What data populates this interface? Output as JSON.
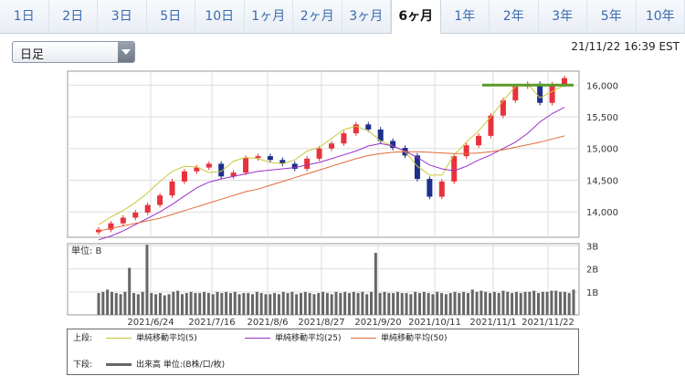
{
  "tabs": [
    {
      "label": "1日"
    },
    {
      "label": "2日"
    },
    {
      "label": "3日"
    },
    {
      "label": "5日"
    },
    {
      "label": "10日"
    },
    {
      "label": "1ヶ月"
    },
    {
      "label": "2ヶ月"
    },
    {
      "label": "3ヶ月"
    },
    {
      "label": "6ヶ月",
      "active": true
    },
    {
      "label": "1年"
    },
    {
      "label": "2年"
    },
    {
      "label": "3年"
    },
    {
      "label": "5年"
    },
    {
      "label": "10年"
    }
  ],
  "selector": {
    "value": "日足"
  },
  "timestamp": "21/11/22 16:39 EST",
  "legend": {
    "upper_label": "上段:",
    "lower_label": "下段:",
    "ma5": "単純移動平均(5)",
    "ma25": "単純移動平均(25)",
    "ma50": "単純移動平均(50)",
    "volume": "出来高 単位:(B株/口/枚)"
  },
  "colors": {
    "ma5": "#c8c83c",
    "ma25": "#9b30c8",
    "ma50": "#e06a3a",
    "up": "#e8323c",
    "down": "#1e2f8c",
    "volume": "#666666",
    "hline": "#5a9a28"
  },
  "chart_data": [
    {
      "type": "line",
      "title": "",
      "yticks": [
        14000,
        14500,
        15000,
        15500,
        16000
      ],
      "ylim": [
        13600,
        16220
      ],
      "xticks": [
        "2021/6/24",
        "2021/7/16",
        "2021/8/6",
        "2021/8/27",
        "2021/9/20",
        "2021/10/11",
        "2021/11/1",
        "2021/11/22"
      ],
      "series": [
        {
          "name": "単純移動平均(5)",
          "values": [
            13800,
            13920,
            14020,
            14150,
            14300,
            14480,
            14640,
            14720,
            14710,
            14620,
            14640,
            14800,
            14860,
            14840,
            14780,
            14760,
            14820,
            14960,
            15020,
            15160,
            15300,
            15350,
            15280,
            15120,
            15040,
            14950,
            14720,
            14580,
            14580,
            14900,
            15100,
            15280,
            15500,
            15750,
            15980,
            16020,
            15800,
            15900,
            16000
          ]
        },
        {
          "name": "単純移動平均(25)",
          "values": [
            13560,
            13620,
            13700,
            13800,
            13900,
            14000,
            14120,
            14250,
            14380,
            14470,
            14520,
            14560,
            14600,
            14640,
            14660,
            14680,
            14700,
            14740,
            14780,
            14840,
            14900,
            14960,
            15040,
            15080,
            15040,
            14960,
            14860,
            14740,
            14680,
            14650,
            14720,
            14820,
            14900,
            15000,
            15100,
            15240,
            15420,
            15550,
            15650
          ]
        },
        {
          "name": "単純移動平均(50)",
          "values": [
            13700,
            13740,
            13780,
            13820,
            13860,
            13900,
            13960,
            14020,
            14080,
            14140,
            14200,
            14260,
            14320,
            14360,
            14420,
            14480,
            14540,
            14600,
            14660,
            14720,
            14780,
            14840,
            14890,
            14920,
            14940,
            14950,
            14950,
            14940,
            14930,
            14920,
            14920,
            14930,
            14950,
            14980,
            15020,
            15060,
            15100,
            15150,
            15200
          ]
        }
      ],
      "close": [
        13720,
        13820,
        13910,
        13990,
        14110,
        14260,
        14480,
        14640,
        14700,
        14760,
        14560,
        14620,
        14850,
        14880,
        14820,
        14760,
        14680,
        14840,
        15000,
        15080,
        15240,
        15380,
        15300,
        15120,
        15010,
        14890,
        14520,
        14240,
        14480,
        14880,
        15050,
        15200,
        15520,
        15760,
        15980,
        16020,
        15720,
        16010,
        16110
      ],
      "hline": 16000
    },
    {
      "type": "bar",
      "title": "単位: B",
      "yticks": [
        {
          "v": 1,
          "label": "1B"
        },
        {
          "v": 2,
          "label": "2B"
        },
        {
          "v": 3,
          "label": "3B"
        }
      ],
      "ylim": [
        0,
        3.1
      ],
      "values": [
        0.95,
        1.0,
        1.1,
        1.0,
        0.95,
        0.9,
        1.0,
        2.05,
        0.95,
        0.9,
        1.0,
        3.05,
        0.95,
        0.9,
        0.95,
        0.85,
        0.9,
        1.0,
        1.05,
        0.9,
        0.95,
        1.0,
        0.95,
        0.95,
        1.0,
        0.95,
        0.9,
        1.0,
        0.95,
        1.0,
        0.95,
        1.0,
        0.9,
        0.95,
        0.95,
        0.9,
        1.0,
        0.95,
        0.9,
        0.9,
        0.95,
        0.9,
        1.0,
        0.95,
        1.0,
        0.9,
        0.95,
        1.0,
        0.95,
        0.9,
        0.95,
        1.0,
        0.95,
        0.9,
        1.0,
        0.95,
        1.0,
        0.95,
        1.0,
        0.95,
        1.0,
        0.9,
        1.0,
        2.7,
        0.95,
        1.0,
        0.95,
        0.95,
        1.0,
        0.95,
        0.95,
        0.9,
        1.0,
        0.95,
        1.0,
        0.95,
        0.9,
        1.0,
        0.95,
        0.9,
        0.95,
        1.0,
        0.95,
        1.0,
        0.95,
        1.1,
        1.0,
        1.05,
        1.0,
        0.95,
        1.0,
        0.95,
        1.05,
        1.0,
        0.95,
        1.0,
        0.95,
        1.0,
        1.0,
        1.05,
        0.95,
        1.0,
        1.0,
        1.05,
        1.05,
        1.0,
        1.0,
        0.95,
        1.1
      ]
    }
  ]
}
